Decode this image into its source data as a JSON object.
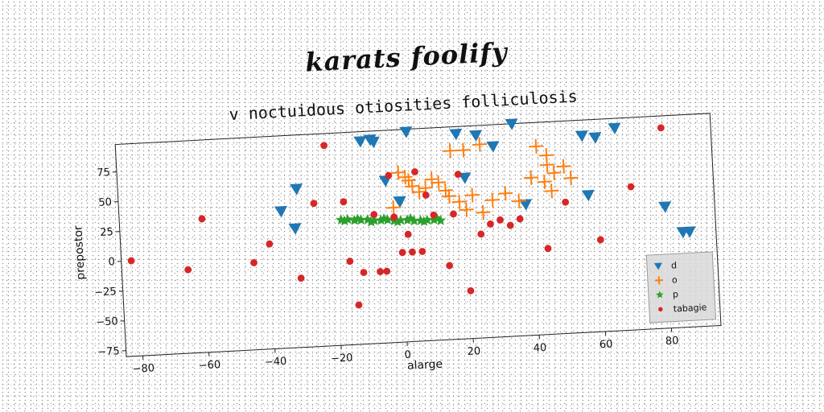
{
  "suptitle": "karats foolify",
  "chart_data": {
    "type": "scatter",
    "title": "v noctuidous otiosities folliculosis",
    "xlabel": "alarge",
    "ylabel": "prepostor",
    "xlim": [
      -85,
      95
    ],
    "ylim": [
      -80,
      98
    ],
    "xticks": [
      -80,
      -60,
      -40,
      -20,
      0,
      20,
      40,
      60,
      80
    ],
    "yticks": [
      -75,
      -50,
      -25,
      0,
      25,
      50,
      75
    ],
    "grid": false,
    "legend_position": "lower-right",
    "series": [
      {
        "name": "d",
        "marker": "triangle-down",
        "color": "#1f77b4",
        "x": [
          -11,
          -8,
          -7,
          3,
          18,
          24,
          29,
          35,
          56,
          60,
          66,
          80,
          87,
          -4,
          -36,
          -31,
          -32,
          0,
          20,
          0,
          38,
          57,
          85
        ],
        "y": [
          90,
          91,
          89,
          96,
          92,
          90,
          80,
          98,
          85,
          83,
          90,
          22,
          0,
          56,
          35,
          53,
          20,
          38,
          55,
          38,
          30,
          35,
          0
        ]
      },
      {
        "name": "o",
        "marker": "plus",
        "color": "#ff7f0e",
        "x": [
          16,
          20,
          25,
          42,
          45,
          0,
          2,
          4,
          10,
          6,
          -2,
          12,
          15,
          18,
          20,
          25,
          28,
          32,
          40,
          44,
          45,
          47,
          50,
          52,
          22,
          36,
          14,
          46,
          8,
          3
        ],
        "y": [
          78,
          78,
          82,
          78,
          70,
          62,
          58,
          50,
          55,
          45,
          33,
          52,
          40,
          35,
          28,
          25,
          35,
          40,
          52,
          48,
          62,
          55,
          60,
          50,
          40,
          33,
          45,
          40,
          48,
          55
        ]
      },
      {
        "name": "p",
        "marker": "star",
        "color": "#2ca02c",
        "x": [
          -18,
          -16,
          -14,
          -12,
          -10,
          -8,
          -6,
          -4,
          -2,
          0,
          2,
          4,
          6,
          8,
          10,
          12,
          -17,
          -13,
          -9,
          -5,
          -1,
          3,
          7,
          11
        ],
        "y": [
          25,
          25,
          24,
          24,
          24,
          23,
          23,
          23,
          22,
          22,
          22,
          21,
          21,
          21,
          21,
          20,
          24,
          25,
          22,
          24,
          21,
          23,
          20,
          22
        ]
      },
      {
        "name": "tabagie",
        "marker": "circle",
        "color": "#d62728",
        "x": [
          -82,
          -65,
          -60,
          -45,
          -31,
          -26,
          -22,
          -17,
          -16,
          -14,
          -12,
          -8,
          -7,
          -5,
          -3,
          -2,
          0,
          2,
          3,
          5,
          6,
          8,
          10,
          14,
          16,
          18,
          20,
          24,
          27,
          30,
          33,
          36,
          44,
          50,
          60,
          70,
          80,
          -40
        ],
        "y": [
          0,
          -10,
          32,
          -7,
          -22,
          40,
          88,
          40,
          -10,
          -47,
          -20,
          28,
          -20,
          -20,
          60,
          25,
          -5,
          10,
          -5,
          62,
          -5,
          42,
          25,
          -18,
          25,
          58,
          -40,
          7,
          15,
          18,
          13,
          18,
          -8,
          30,
          -3,
          40,
          88,
          8
        ]
      }
    ]
  }
}
